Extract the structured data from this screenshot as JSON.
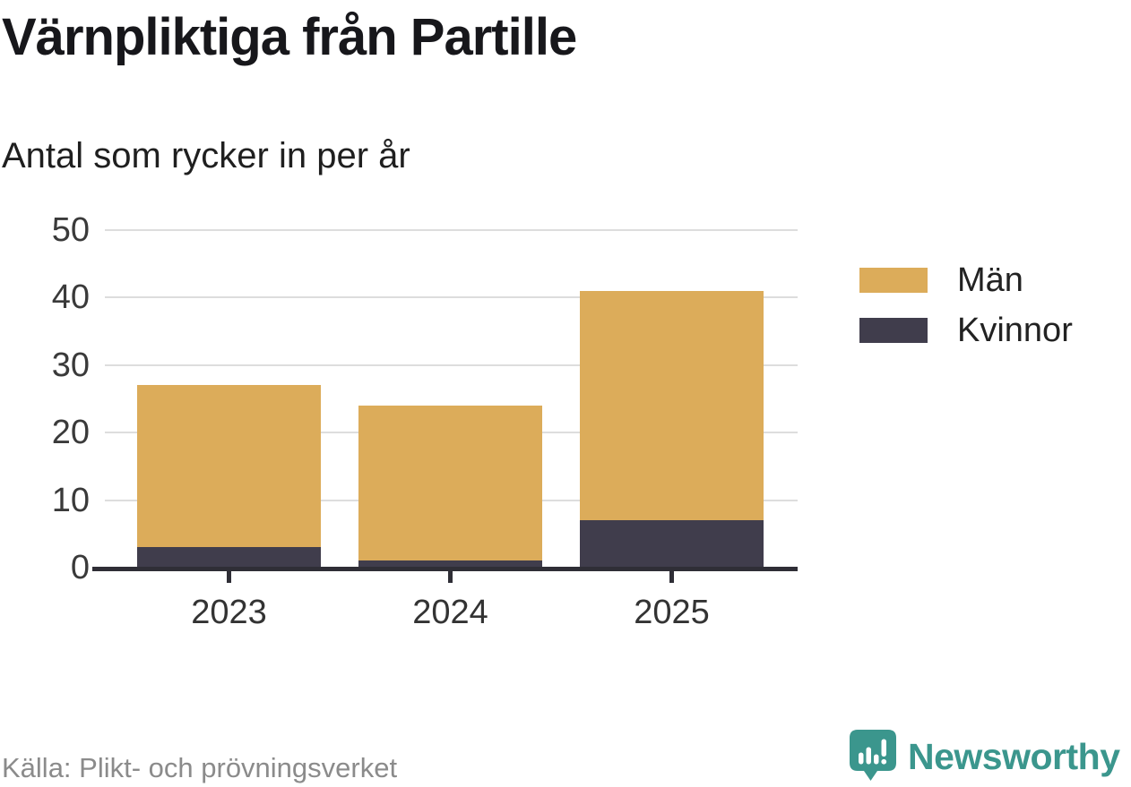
{
  "chart_data": {
    "type": "bar",
    "stacked": true,
    "title": "Värnpliktiga från Partille",
    "subtitle": "Antal som rycker in per år",
    "categories": [
      "2023",
      "2024",
      "2025"
    ],
    "series": [
      {
        "name": "Män",
        "color": "#DCAC5A",
        "values": [
          24,
          23,
          34
        ]
      },
      {
        "name": "Kvinnor",
        "color": "#403D4C",
        "values": [
          3,
          1,
          7
        ]
      }
    ],
    "totals": [
      27,
      24,
      41
    ],
    "xlabel": "",
    "ylabel": "",
    "ylim": [
      0,
      50
    ],
    "yticks": [
      0,
      10,
      20,
      30,
      40,
      50
    ],
    "grid": true,
    "legend_position": "right"
  },
  "footer": {
    "source": "Källa: Plikt- och prövningsverket",
    "brand": "Newsworthy"
  },
  "colors": {
    "men": "#DCAC5A",
    "women": "#403D4C",
    "axis": "#2F2E36",
    "gridline": "#DDDDDD",
    "tick_label": "#3A3A3A",
    "brand_teal": "#3B968D",
    "source_text": "#8B8B8B"
  }
}
